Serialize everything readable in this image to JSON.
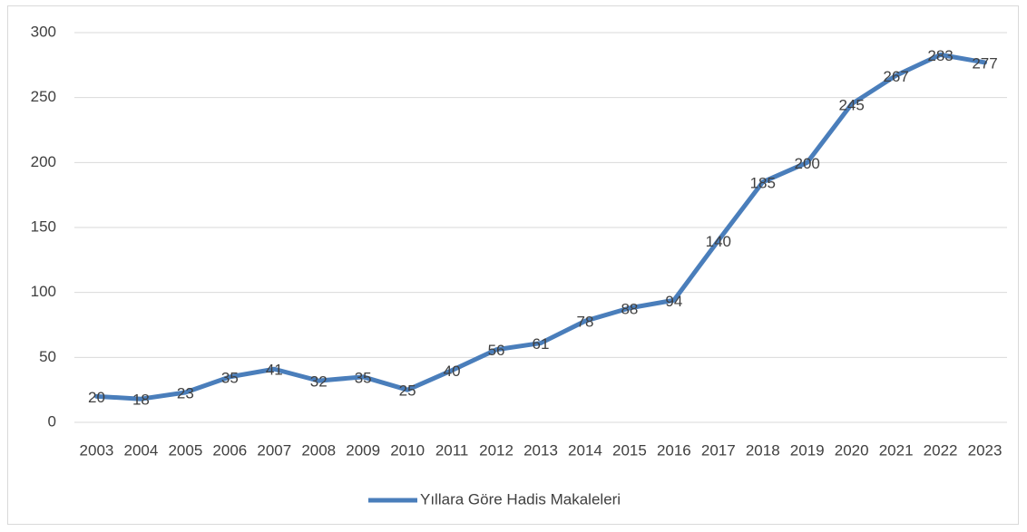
{
  "chart_data": {
    "type": "line",
    "categories": [
      "2003",
      "2004",
      "2005",
      "2006",
      "2007",
      "2008",
      "2009",
      "2010",
      "2011",
      "2012",
      "2013",
      "2014",
      "2015",
      "2016",
      "2017",
      "2018",
      "2019",
      "2020",
      "2021",
      "2022",
      "2023"
    ],
    "series": [
      {
        "name": "Yıllara Göre Hadis Makaleleri",
        "color": "#4a7ebb",
        "values": [
          20,
          18,
          23,
          35,
          41,
          32,
          35,
          25,
          40,
          56,
          61,
          78,
          88,
          94,
          140,
          185,
          200,
          245,
          267,
          283,
          277
        ]
      }
    ],
    "ylim": [
      0,
      300
    ],
    "yticks": [
      0,
      50,
      100,
      150,
      200,
      250,
      300
    ],
    "grid": true,
    "legend": "bottom"
  }
}
